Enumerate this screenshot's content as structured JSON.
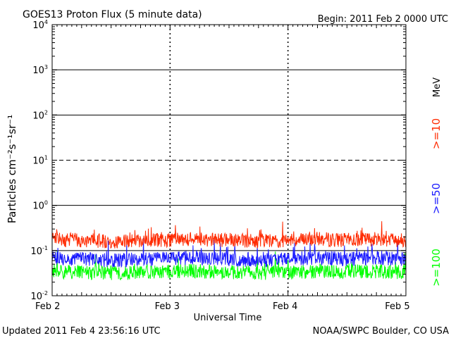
{
  "header": {
    "title": "GOES13 Proton Flux (5 minute data)",
    "begin": "Begin: 2011 Feb 2 0000 UTC"
  },
  "footer": {
    "updated": "Updated 2011 Feb  4 23:56:16 UTC",
    "credit": "NOAA/SWPC Boulder, CO USA"
  },
  "colors": {
    "background": "#ffffff",
    "axis": "#000000",
    "ge10": "#ff2a00",
    "ge50": "#1a1aff",
    "ge100": "#00ff00"
  },
  "chart_data": {
    "type": "line",
    "title": "GOES13 Proton Flux (5 minute data)",
    "xlabel": "Universal Time",
    "ylabel": "Particles cm⁻²s⁻¹sr⁻¹",
    "yscale": "log",
    "ylim": [
      0.01,
      10000
    ],
    "xlim": [
      "2011-02-02 00:00",
      "2011-02-05 00:00"
    ],
    "x_tick_labels": [
      "Feb 2",
      "Feb 3",
      "Feb 4",
      "Feb 5"
    ],
    "y_tick_labels": [
      {
        "base": "10",
        "exp": "-2"
      },
      {
        "base": "10",
        "exp": "-1"
      },
      {
        "base": "10",
        "exp": "0"
      },
      {
        "base": "10",
        "exp": "1"
      },
      {
        "base": "10",
        "exp": "2"
      },
      {
        "base": "10",
        "exp": "3"
      },
      {
        "base": "10",
        "exp": "4"
      }
    ],
    "y_gridlines": [
      {
        "value": 0.1,
        "style": "solid"
      },
      {
        "value": 1,
        "style": "solid"
      },
      {
        "value": 10,
        "style": "dashed"
      },
      {
        "value": 100,
        "style": "solid"
      },
      {
        "value": 1000,
        "style": "solid"
      }
    ],
    "legend_position": "right",
    "legend_unit": "MeV",
    "series": [
      {
        "name": ">=10",
        "color": "#ff2a00",
        "x": [
          "2011-02-02 00:00",
          "2011-02-02 06:00",
          "2011-02-02 12:00",
          "2011-02-02 18:00",
          "2011-02-03 00:00",
          "2011-02-03 06:00",
          "2011-02-03 12:00",
          "2011-02-03 18:00",
          "2011-02-04 00:00",
          "2011-02-04 06:00",
          "2011-02-04 12:00",
          "2011-02-04 18:00",
          "2011-02-05 00:00"
        ],
        "values": [
          0.18,
          0.17,
          0.16,
          0.17,
          0.17,
          0.18,
          0.17,
          0.16,
          0.17,
          0.18,
          0.17,
          0.18,
          0.17
        ]
      },
      {
        "name": ">=50",
        "color": "#1a1aff",
        "x": [
          "2011-02-02 00:00",
          "2011-02-02 06:00",
          "2011-02-02 12:00",
          "2011-02-02 18:00",
          "2011-02-03 00:00",
          "2011-02-03 06:00",
          "2011-02-03 12:00",
          "2011-02-03 18:00",
          "2011-02-04 00:00",
          "2011-02-04 06:00",
          "2011-02-04 12:00",
          "2011-02-04 18:00",
          "2011-02-05 00:00"
        ],
        "values": [
          0.07,
          0.065,
          0.06,
          0.065,
          0.065,
          0.07,
          0.065,
          0.06,
          0.065,
          0.07,
          0.065,
          0.07,
          0.065
        ]
      },
      {
        "name": ">=100",
        "color": "#00ff00",
        "x": [
          "2011-02-02 00:00",
          "2011-02-02 06:00",
          "2011-02-02 12:00",
          "2011-02-02 18:00",
          "2011-02-03 00:00",
          "2011-02-03 06:00",
          "2011-02-03 12:00",
          "2011-02-03 18:00",
          "2011-02-04 00:00",
          "2011-02-04 06:00",
          "2011-02-04 12:00",
          "2011-02-04 18:00",
          "2011-02-05 00:00"
        ],
        "values": [
          0.035,
          0.033,
          0.032,
          0.033,
          0.034,
          0.035,
          0.033,
          0.032,
          0.033,
          0.035,
          0.034,
          0.035,
          0.033
        ]
      }
    ]
  }
}
